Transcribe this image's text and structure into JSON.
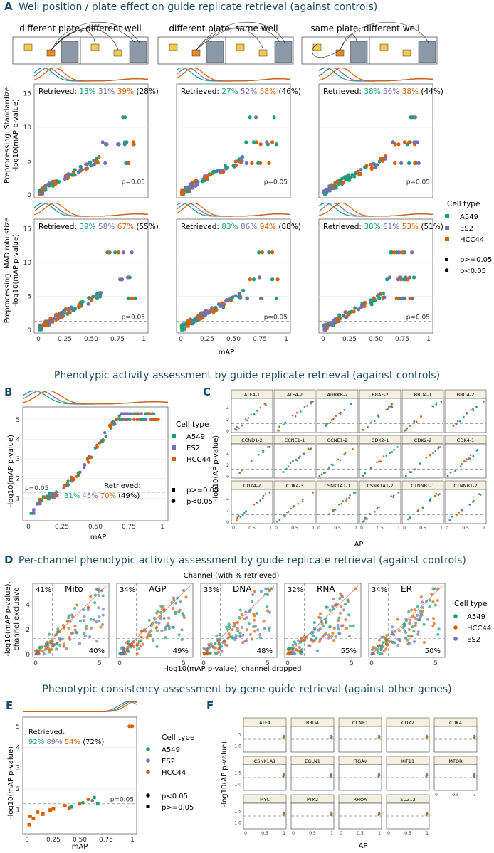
{
  "colors": {
    "A549": "#1b9e77",
    "ES2": "#7570b3",
    "HCC44": "#d95f02"
  },
  "panelA": {
    "letter": "A",
    "title": "Well position / plate effect on guide replicate retrieval (against controls)",
    "col_titles": [
      "different plate, different well",
      "different plate, same well",
      "same plate, different well"
    ],
    "row_labels": [
      "Preprocessing: Standardize",
      "Preprocessing: MAD robustize"
    ],
    "ylabel": "-log10(mAP p-value)",
    "xlabel": "mAP",
    "pval_label": "p=0.05",
    "retrieved_word": "Retrieved:",
    "legend": {
      "title": "Cell type",
      "cells": [
        "A549",
        "ES2",
        "HCC44"
      ],
      "shapes": [
        "p>=0.05",
        "p<0.05"
      ]
    }
  },
  "panelB": {
    "letter": "B",
    "title": "Phenotypic activity assessment by guide replicate retrieval (against controls)",
    "ylabel": "-log10(mAP p-value)",
    "xlabel": "mAP",
    "pval_label": "p=0.05",
    "retrieved_word": "Retrieved:",
    "legend": {
      "title": "Cell type",
      "cells": [
        "A549",
        "ES2",
        "HCC44"
      ],
      "shapes": [
        "p>=0.05",
        "p<0.05"
      ]
    }
  },
  "panelC": {
    "letter": "C",
    "ylabel": "-log10(AP p-value)",
    "xlabel": "AP"
  },
  "panelD": {
    "letter": "D",
    "title": "Per-channel phenotypic activity assessment by guide replicate retrieval (against controls)",
    "subtitle": "Channel (with % retrieved)",
    "ylabel1": "-log10(mAP p-value),",
    "ylabel2": "channel exclusive",
    "xlabel": "-log10(mAP p-value), channel dropped",
    "legend": {
      "title": "Cell type",
      "cells": [
        "A549",
        "HCC44",
        "ES2"
      ]
    }
  },
  "panelE": {
    "letter": "E",
    "title": "Phenotypic consistency assessment by gene guide retrieval (against other genes)",
    "ylabel": "-log10(mAP p-value)",
    "xlabel": "mAP",
    "pval_label": "p=0.05",
    "retrieved_word": "Retrieved:",
    "legend": {
      "title": "Cell type",
      "cells": [
        "A549",
        "ES2",
        "HCC44"
      ],
      "shapes": [
        "p<0.05",
        "p>=0.05"
      ]
    }
  },
  "panelF": {
    "letter": "F",
    "ylabel": "-log10(AP p-value)",
    "xlabel": "AP"
  },
  "chart_data": [
    {
      "id": "A",
      "type": "scatter",
      "title": "Well position / plate effect on guide replicate retrieval (against controls)",
      "xlabel": "mAP",
      "ylabel": "-log10(mAP p-value)",
      "xlim": [
        0,
        1
      ],
      "ylim": [
        0,
        16
      ],
      "xticks": [
        "0",
        "0.25",
        "0.50",
        "0.75",
        "1"
      ],
      "yticks": [
        "0",
        "5",
        "10",
        "15"
      ],
      "threshold": 1.3,
      "panels": [
        {
          "row": 0,
          "col": 0,
          "retrieved": [
            "13%",
            "31%",
            "39%"
          ],
          "overall": "(28%)"
        },
        {
          "row": 0,
          "col": 1,
          "retrieved": [
            "27%",
            "52%",
            "58%"
          ],
          "overall": "(46%)"
        },
        {
          "row": 0,
          "col": 2,
          "retrieved": [
            "38%",
            "56%",
            "38%"
          ],
          "overall": "(44%)"
        },
        {
          "row": 1,
          "col": 0,
          "retrieved": [
            "39%",
            "58%",
            "67%"
          ],
          "overall": "(55%)"
        },
        {
          "row": 1,
          "col": 1,
          "retrieved": [
            "83%",
            "86%",
            "94%"
          ],
          "overall": "(88%)"
        },
        {
          "row": 1,
          "col": 2,
          "retrieved": [
            "38%",
            "61%",
            "53%"
          ],
          "overall": "(51%)"
        }
      ],
      "curve": [
        [
          0.02,
          0.3
        ],
        [
          0.1,
          1.3
        ],
        [
          0.2,
          2.2
        ],
        [
          0.3,
          3.0
        ],
        [
          0.4,
          3.8
        ],
        [
          0.5,
          4.5
        ],
        [
          0.6,
          5.5
        ],
        [
          0.7,
          7.5
        ],
        [
          0.8,
          8.0
        ],
        [
          0.9,
          11.5
        ],
        [
          0.97,
          14
        ]
      ]
    },
    {
      "id": "B",
      "type": "scatter",
      "xlabel": "mAP",
      "ylabel": "-log10(mAP p-value)",
      "xlim": [
        0,
        1
      ],
      "ylim": [
        0,
        5.5
      ],
      "xticks": [
        "0",
        "0.25",
        "0.50",
        "0.75",
        "1"
      ],
      "yticks": [
        "1",
        "2",
        "3",
        "4",
        "5"
      ],
      "threshold": 1.3,
      "retrieved": [
        "31%",
        "45%",
        "70%"
      ],
      "overall": "(49%)",
      "curve": [
        [
          0.03,
          0.3
        ],
        [
          0.1,
          0.9
        ],
        [
          0.2,
          1.2
        ],
        [
          0.25,
          1.3
        ],
        [
          0.3,
          1.8
        ],
        [
          0.4,
          2.5
        ],
        [
          0.5,
          3.5
        ],
        [
          0.6,
          4.5
        ],
        [
          0.66,
          5.0
        ],
        [
          0.7,
          5.3
        ],
        [
          0.98,
          5.3
        ]
      ]
    },
    {
      "id": "C",
      "type": "scatter",
      "xlabel": "AP",
      "ylabel": "-log10(AP p-value)",
      "xlim": [
        0,
        1
      ],
      "ylim": [
        0,
        5.5
      ],
      "xticks": [
        "0",
        "0.5",
        "1"
      ],
      "yticks": [
        "0",
        "2",
        "4"
      ],
      "facets": [
        "ATF4-1",
        "ATF4-2",
        "AURKB-2",
        "BRAF-2",
        "BRD4-1",
        "BRD4-2",
        "CCND1-2",
        "CCNE1-1",
        "CCNE1-2",
        "CDK2-1",
        "CDK2-2",
        "CDK4-1",
        "CDK4-2",
        "CDK4-3",
        "CSNK1A1-1",
        "CSNK1A1-2",
        "CTNNB1-1",
        "CTNNB1-2"
      ]
    },
    {
      "id": "D",
      "type": "scatter",
      "subtitle": "Channel (with % retrieved)",
      "xlabel": "-log10(mAP p-value), channel dropped",
      "ylabel": "-log10(mAP p-value), channel exclusive",
      "xlim": [
        0,
        5.5
      ],
      "ylim": [
        0,
        5.5
      ],
      "xticks": [
        "0",
        "5"
      ],
      "yticks": [
        "0",
        "2",
        "4"
      ],
      "channels": [
        {
          "name": "Mito",
          "pct_exclusive": "41%",
          "pct_dropped": "40%"
        },
        {
          "name": "AGP",
          "pct_exclusive": "34%",
          "pct_dropped": "49%"
        },
        {
          "name": "DNA",
          "pct_exclusive": "33%",
          "pct_dropped": "48%"
        },
        {
          "name": "RNA",
          "pct_exclusive": "32%",
          "pct_dropped": "55%"
        },
        {
          "name": "ER",
          "pct_exclusive": "34%",
          "pct_dropped": "50%"
        }
      ]
    },
    {
      "id": "E",
      "type": "scatter",
      "title": "Phenotypic consistency assessment by gene guide retrieval (against other genes)",
      "xlabel": "mAP",
      "ylabel": "-log10(mAP p-value)",
      "xlim": [
        0,
        1
      ],
      "ylim": [
        0,
        5.3
      ],
      "xticks": [
        "0",
        "0.25",
        "0.50",
        "0.75",
        "1"
      ],
      "yticks": [
        "1",
        "2",
        "3",
        "4",
        "5"
      ],
      "threshold": 1.3,
      "retrieved": [
        "92%",
        "89%",
        "54%"
      ],
      "overall": "(72%)",
      "points": [
        {
          "x": 0.02,
          "y": 0.3,
          "c": "HCC44"
        },
        {
          "x": 0.03,
          "y": 0.7,
          "c": "HCC44"
        },
        {
          "x": 0.06,
          "y": 0.6,
          "c": "HCC44"
        },
        {
          "x": 0.1,
          "y": 0.9,
          "c": "HCC44"
        },
        {
          "x": 0.15,
          "y": 0.8,
          "c": "HCC44"
        },
        {
          "x": 0.22,
          "y": 1.0,
          "c": "HCC44"
        },
        {
          "x": 0.25,
          "y": 1.05,
          "c": "HCC44"
        },
        {
          "x": 0.36,
          "y": 1.2,
          "c": "HCC44"
        },
        {
          "x": 0.4,
          "y": 1.1,
          "c": "HCC44"
        },
        {
          "x": 0.42,
          "y": 1.15,
          "c": "A549"
        },
        {
          "x": 0.5,
          "y": 1.3,
          "c": "HCC44"
        },
        {
          "x": 0.53,
          "y": 1.35,
          "c": "A549"
        },
        {
          "x": 0.58,
          "y": 1.5,
          "c": "HCC44"
        },
        {
          "x": 0.62,
          "y": 1.45,
          "c": "ES2"
        },
        {
          "x": 0.64,
          "y": 1.6,
          "c": "A549"
        },
        {
          "x": 0.67,
          "y": 1.3,
          "c": "A549"
        },
        {
          "x": 0.97,
          "y": 5.0,
          "c": "HCC44"
        },
        {
          "x": 0.99,
          "y": 5.0,
          "c": "HCC44"
        },
        {
          "x": 1.0,
          "y": 5.0,
          "c": "HCC44"
        }
      ]
    },
    {
      "id": "F",
      "type": "scatter",
      "xlabel": "AP",
      "ylabel": "-log10(AP p-value)",
      "xlim": [
        0,
        1
      ],
      "ylim": [
        0.8,
        1.8
      ],
      "xticks": [
        "0",
        "0.5",
        "1"
      ],
      "yticks": [
        "1.0",
        "1.5"
      ],
      "facets": [
        "ATF4",
        "BRD4",
        "CCNE1",
        "CDK2",
        "CDK4",
        "CSNK1A1",
        "EGLN1",
        "ITGAV",
        "KIF11",
        "MTOR",
        "MYC",
        "PTK2",
        "RHOA",
        "SUZ12"
      ]
    }
  ]
}
